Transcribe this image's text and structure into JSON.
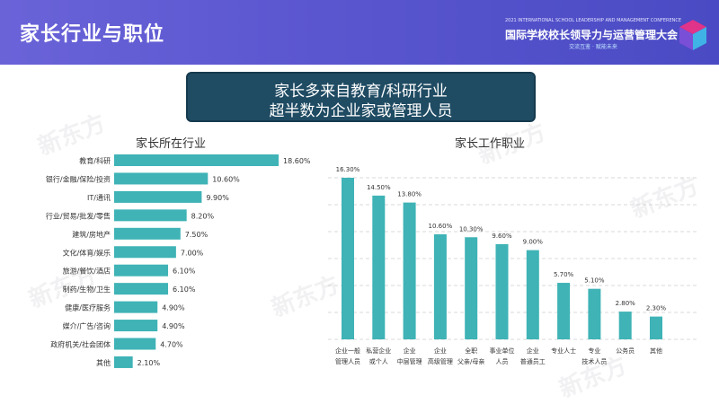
{
  "header": {
    "title": "家长行业与职位",
    "conference": {
      "small_text": "2021 INTERNATIONAL SCHOOL LEADERSHIP AND MANAGEMENT CONFERENCE",
      "title": "国际学校校长领导力与运营管理大会",
      "subtitle": "交流互鉴 · 赋能未来"
    }
  },
  "callout": {
    "line1": "家长多来自教育/科研行业",
    "line2": "超半数为企业家或管理人员"
  },
  "watermark": "新东方",
  "colors": {
    "bar": "#3fb3b6",
    "header": "#5a56cf",
    "callout": "#1f4b63"
  },
  "chart_data": [
    {
      "type": "bar",
      "orientation": "horizontal",
      "title": "家长所在行业",
      "categories": [
        "教育/科研",
        "银行/金融/保险/投资",
        "IT/通讯",
        "行业/贸易/批发/零售",
        "建筑/房地产",
        "文化/体育/娱乐",
        "旅游/餐饮/酒店",
        "制药/生物/卫生",
        "健康/医疗服务",
        "媒介/广告/咨询",
        "政府机关/社会团体",
        "其他"
      ],
      "values": [
        18.6,
        10.6,
        9.9,
        8.2,
        7.5,
        7.0,
        6.1,
        6.1,
        4.9,
        4.9,
        4.7,
        2.1
      ],
      "labels": [
        "18.60%",
        "10.60%",
        "9.90%",
        "8.20%",
        "7.50%",
        "7.00%",
        "6.10%",
        "6.10%",
        "4.90%",
        "4.90%",
        "4.70%",
        "2.10%"
      ],
      "color": "#3fb3b6"
    },
    {
      "type": "bar",
      "orientation": "vertical",
      "title": "家长工作职业",
      "categories": [
        [
          "企业一般",
          "管理人员"
        ],
        [
          "私营企业",
          "或个人"
        ],
        [
          "企业",
          "中层管理"
        ],
        [
          "企业",
          "高级管理"
        ],
        [
          "全职",
          "父亲/母亲"
        ],
        [
          "事业单位",
          "人员"
        ],
        [
          "企业",
          "普通员工"
        ],
        [
          "专业人士"
        ],
        [
          "专业",
          "技术人员"
        ],
        [
          "公务员"
        ],
        [
          "其他"
        ]
      ],
      "values": [
        16.3,
        14.5,
        13.8,
        10.6,
        10.3,
        9.6,
        9.0,
        5.7,
        5.1,
        2.8,
        2.3
      ],
      "labels": [
        "16.30%",
        "14.50%",
        "13.80%",
        "10.60%",
        "10.30%",
        "9.60%",
        "9.00%",
        "5.70%",
        "5.10%",
        "2.80%",
        "2.30%"
      ],
      "color": "#3fb3b6",
      "grid": true
    }
  ]
}
